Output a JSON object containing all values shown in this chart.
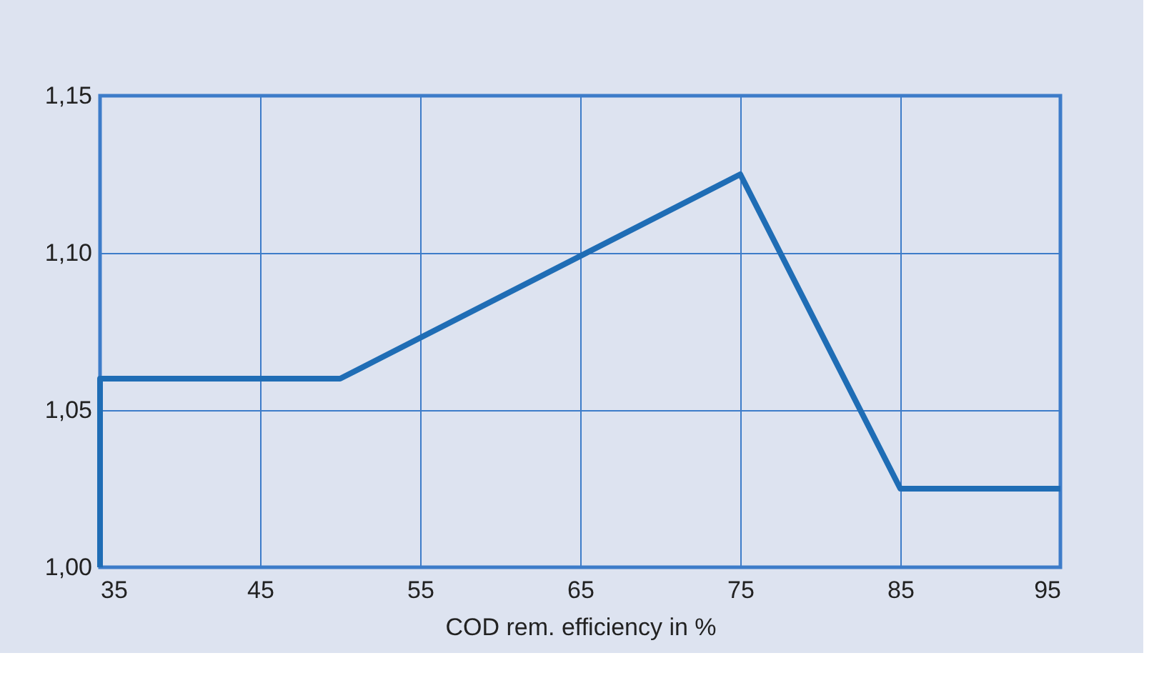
{
  "chart_data": {
    "type": "line",
    "xlabel": "COD rem. efficiency in %",
    "x": [
      35,
      35,
      50,
      75,
      85,
      95
    ],
    "series": [
      {
        "color": "#1f6db5",
        "values": [
          1.0,
          1.06,
          1.06,
          1.125,
          1.025,
          1.025
        ]
      }
    ],
    "xlim": [
      35,
      95
    ],
    "xticks": [
      35,
      45,
      55,
      65,
      75,
      85,
      95
    ],
    "ylim": [
      1.0,
      1.15
    ],
    "yticks": [
      {
        "value": 1.0,
        "label": "1,00"
      },
      {
        "value": 1.05,
        "label": "1,05"
      },
      {
        "value": 1.1,
        "label": "1,10"
      },
      {
        "value": 1.15,
        "label": "1,15"
      }
    ],
    "grid": true,
    "marker": "none",
    "line_style": "solid"
  }
}
